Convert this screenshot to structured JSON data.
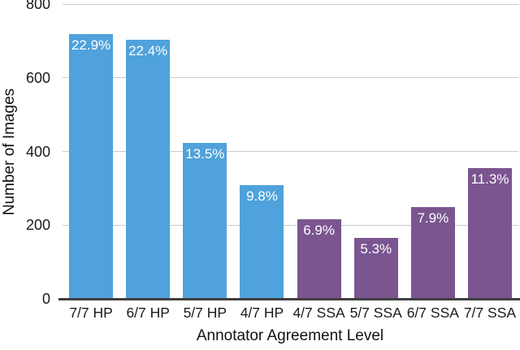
{
  "chart_data": {
    "type": "bar",
    "title": "",
    "xlabel": "Annotator Agreement Level",
    "ylabel": "Number of Images",
    "ylim": [
      0,
      800
    ],
    "yticks": [
      0,
      200,
      400,
      600,
      800
    ],
    "grid": true,
    "legend_position": "none",
    "categories": [
      "7/7 HP",
      "6/7 HP",
      "5/7 HP",
      "4/7 HP",
      "4/7 SSA",
      "5/7 SSA",
      "6/7 SSA",
      "7/7 SSA"
    ],
    "values": [
      719,
      703,
      424,
      308,
      217,
      166,
      248,
      355
    ],
    "bar_labels": [
      "22.9%",
      "22.4%",
      "13.5%",
      "9.8%",
      "6.9%",
      "5.3%",
      "7.9%",
      "11.3%"
    ],
    "bar_colors": [
      "#4FA2DB",
      "#4FA2DB",
      "#4FA2DB",
      "#4FA2DB",
      "#7A5590",
      "#7A5590",
      "#7A5590",
      "#7A5590"
    ],
    "groups": [
      {
        "name": "HP",
        "color": "#4FA2DB"
      },
      {
        "name": "SSA",
        "color": "#7A5590"
      }
    ],
    "colors": {
      "gridline": "#cccccc",
      "axis_line": "#404040",
      "bar_label_text": "#ffffff",
      "tick_text": "#1a1a1a",
      "background": "#ffffff"
    }
  }
}
